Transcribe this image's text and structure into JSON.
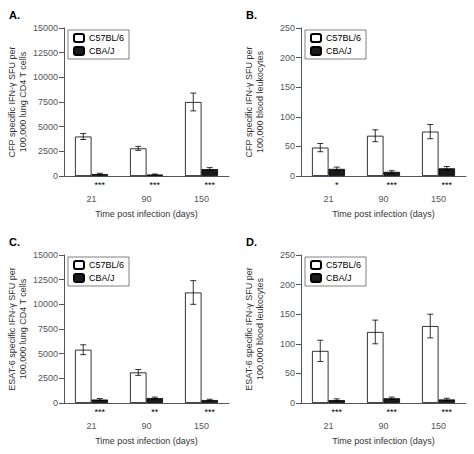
{
  "chart_data": [
    {
      "type": "bar",
      "title": "A.",
      "categories": [
        "21",
        "90",
        "150"
      ],
      "series": [
        {
          "name": "C57BL/6",
          "color": "#ffffff",
          "values": [
            4000,
            2800,
            7500
          ],
          "errors": [
            300,
            200,
            900
          ]
        },
        {
          "name": "CBA/J",
          "color": "#1a1a1a",
          "values": [
            200,
            150,
            700
          ],
          "errors": [
            80,
            50,
            150
          ]
        }
      ],
      "xlabel": "Time post infection (days)",
      "ylabel": "CFP specific IFN-γ SFU per\n100,000 lung CD4 T cells",
      "ylim": [
        0,
        15000
      ],
      "yticks": [
        0,
        2500,
        5000,
        7500,
        10000,
        12500,
        15000
      ],
      "grid": false,
      "legend": "upper left",
      "annotations": [
        {
          "text": "***",
          "series": "CBA/J",
          "x": "21"
        },
        {
          "text": "***",
          "series": "CBA/J",
          "x": "90"
        },
        {
          "text": "***",
          "series": "CBA/J",
          "x": "150"
        }
      ]
    },
    {
      "type": "bar",
      "title": "B.",
      "categories": [
        "21",
        "90",
        "150"
      ],
      "series": [
        {
          "name": "C57BL/6",
          "color": "#ffffff",
          "values": [
            48,
            68,
            75
          ],
          "errors": [
            7,
            10,
            12
          ]
        },
        {
          "name": "CBA/J",
          "color": "#1a1a1a",
          "values": [
            12,
            7,
            13
          ],
          "errors": [
            3,
            2,
            3
          ]
        }
      ],
      "xlabel": "Time post infection (days)",
      "ylabel": "CFP specific IFN-γ SFU per\n100,000 blood leukocytes",
      "ylim": [
        0,
        250
      ],
      "yticks": [
        0,
        50,
        100,
        150,
        200,
        250
      ],
      "grid": false,
      "legend": "upper left",
      "annotations": [
        {
          "text": "*",
          "series": "CBA/J",
          "x": "21"
        },
        {
          "text": "***",
          "series": "CBA/J",
          "x": "90"
        },
        {
          "text": "***",
          "series": "CBA/J",
          "x": "150"
        }
      ]
    },
    {
      "type": "bar",
      "title": "C.",
      "categories": [
        "21",
        "90",
        "150"
      ],
      "series": [
        {
          "name": "C57BL/6",
          "color": "#ffffff",
          "values": [
            5400,
            3100,
            11200
          ],
          "errors": [
            500,
            300,
            1200
          ]
        },
        {
          "name": "CBA/J",
          "color": "#1a1a1a",
          "values": [
            350,
            500,
            300
          ],
          "errors": [
            100,
            100,
            80
          ]
        }
      ],
      "xlabel": "Time post infection (days)",
      "ylabel": "ESAT-6 specific IFN-γ SFU per\n100,000 lung CD4 T cells",
      "ylim": [
        0,
        15000
      ],
      "yticks": [
        0,
        2500,
        5000,
        7500,
        10000,
        12500,
        15000
      ],
      "grid": false,
      "legend": "upper left",
      "annotations": [
        {
          "text": "***",
          "series": "CBA/J",
          "x": "21"
        },
        {
          "text": "**",
          "series": "CBA/J",
          "x": "90"
        },
        {
          "text": "***",
          "series": "CBA/J",
          "x": "150"
        }
      ]
    },
    {
      "type": "bar",
      "title": "D.",
      "categories": [
        "21",
        "90",
        "150"
      ],
      "series": [
        {
          "name": "C57BL/6",
          "color": "#ffffff",
          "values": [
            88,
            120,
            130
          ],
          "errors": [
            18,
            20,
            20
          ]
        },
        {
          "name": "CBA/J",
          "color": "#1a1a1a",
          "values": [
            5,
            8,
            6
          ],
          "errors": [
            2,
            2,
            2
          ]
        }
      ],
      "xlabel": "Time post infection (days)",
      "ylabel": "ESAT-6 specific IFN-γ SFU per\n100,000 blood leukocytes",
      "ylim": [
        0,
        250
      ],
      "yticks": [
        0,
        50,
        100,
        150,
        200,
        250
      ],
      "grid": false,
      "legend": "upper left",
      "annotations": [
        {
          "text": "***",
          "series": "CBA/J",
          "x": "21"
        },
        {
          "text": "***",
          "series": "CBA/J",
          "x": "90"
        },
        {
          "text": "***",
          "series": "CBA/J",
          "x": "150"
        }
      ]
    }
  ]
}
